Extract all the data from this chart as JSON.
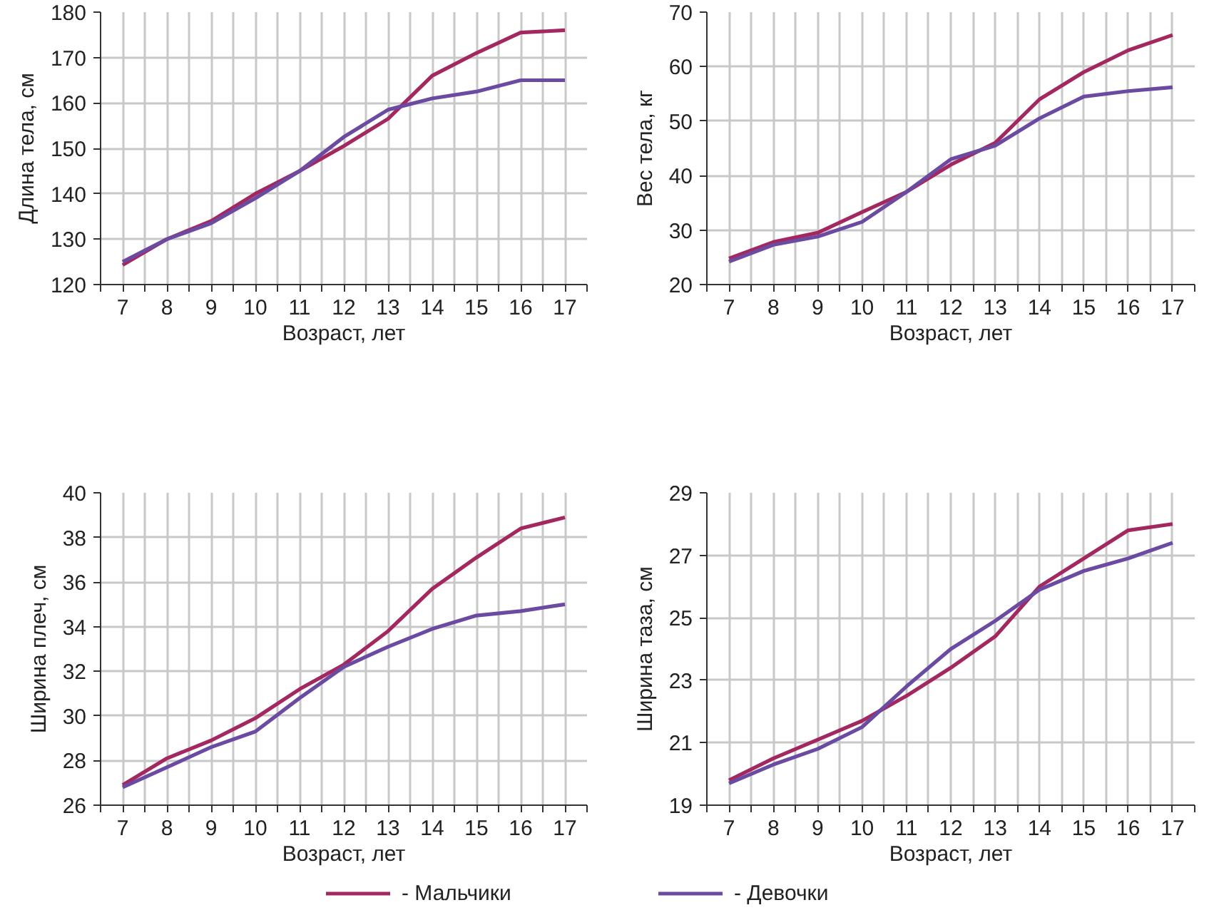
{
  "chart_data": [
    {
      "type": "line",
      "xlabel": "Возраст, лет",
      "ylabel": "Длина тела, см",
      "x": [
        7,
        8,
        9,
        10,
        11,
        12,
        13,
        14,
        15,
        16,
        17
      ],
      "xlim": [
        6.5,
        17.5
      ],
      "ylim": [
        120,
        180
      ],
      "xticks": [
        {
          "value": 6.5,
          "label": null
        },
        7,
        {
          "value": 7.5,
          "label": null
        },
        8,
        {
          "value": 8.5,
          "label": null
        },
        9,
        {
          "value": 9.5,
          "label": null
        },
        10,
        {
          "value": 10.5,
          "label": null
        },
        11,
        {
          "value": 11.5,
          "label": null
        },
        12,
        {
          "value": 12.5,
          "label": null
        },
        13,
        {
          "value": 13.5,
          "label": null
        },
        14,
        {
          "value": 14.5,
          "label": null
        },
        15,
        {
          "value": 15.5,
          "label": null
        },
        16,
        {
          "value": 16.5,
          "label": null
        },
        17,
        {
          "value": 17.5,
          "label": null
        }
      ],
      "yticks": [
        120,
        130,
        140,
        150,
        160,
        170,
        180
      ],
      "grid": true,
      "series": [
        {
          "color": "#a3285f",
          "values": [
            124.3,
            130,
            134,
            140,
            145,
            150.5,
            156.5,
            166,
            171,
            175.5,
            176
          ]
        },
        {
          "color": "#6b4aa2",
          "values": [
            125,
            130,
            133.5,
            139,
            145,
            152.5,
            158.5,
            161,
            162.5,
            165,
            165
          ]
        }
      ]
    },
    {
      "type": "line",
      "xlabel": "Возраст, лет",
      "ylabel": "Вес тела, кг",
      "x": [
        7,
        8,
        9,
        10,
        11,
        12,
        13,
        14,
        15,
        16,
        17
      ],
      "xlim": [
        6.5,
        17.5
      ],
      "ylim": [
        20,
        70
      ],
      "xticks": [
        {
          "value": 6.5,
          "label": null
        },
        7,
        {
          "value": 7.5,
          "label": null
        },
        8,
        {
          "value": 8.5,
          "label": null
        },
        9,
        {
          "value": 9.5,
          "label": null
        },
        10,
        {
          "value": 10.5,
          "label": null
        },
        11,
        {
          "value": 11.5,
          "label": null
        },
        12,
        {
          "value": 12.5,
          "label": null
        },
        13,
        {
          "value": 13.5,
          "label": null
        },
        14,
        {
          "value": 14.5,
          "label": null
        },
        15,
        {
          "value": 15.5,
          "label": null
        },
        16,
        {
          "value": 16.5,
          "label": null
        },
        17,
        {
          "value": 17.5,
          "label": null
        }
      ],
      "yticks": [
        20,
        30,
        40,
        50,
        60,
        70
      ],
      "grid": true,
      "series": [
        {
          "color": "#a3285f",
          "values": [
            24.8,
            27.8,
            29.5,
            33.3,
            37,
            42,
            46,
            54,
            59,
            63,
            65.8
          ]
        },
        {
          "color": "#6b4aa2",
          "values": [
            24.2,
            27.3,
            28.8,
            31.5,
            37,
            43,
            45.5,
            50.5,
            54.5,
            55.5,
            56.2
          ]
        }
      ]
    },
    {
      "type": "line",
      "xlabel": "Возраст, лет",
      "ylabel": "Ширина плеч, см",
      "x": [
        7,
        8,
        9,
        10,
        11,
        12,
        13,
        14,
        15,
        16,
        17
      ],
      "xlim": [
        6.5,
        17.5
      ],
      "ylim": [
        26,
        40
      ],
      "xticks": [
        {
          "value": 6.5,
          "label": null
        },
        7,
        {
          "value": 7.5,
          "label": null
        },
        8,
        {
          "value": 8.5,
          "label": null
        },
        9,
        {
          "value": 9.5,
          "label": null
        },
        10,
        {
          "value": 10.5,
          "label": null
        },
        11,
        {
          "value": 11.5,
          "label": null
        },
        12,
        {
          "value": 12.5,
          "label": null
        },
        13,
        {
          "value": 13.5,
          "label": null
        },
        14,
        {
          "value": 14.5,
          "label": null
        },
        15,
        {
          "value": 15.5,
          "label": null
        },
        16,
        {
          "value": 16.5,
          "label": null
        },
        17,
        {
          "value": 17.5,
          "label": null
        }
      ],
      "yticks": [
        26,
        28,
        30,
        32,
        34,
        36,
        38,
        40
      ],
      "grid": true,
      "series": [
        {
          "color": "#a3285f",
          "values": [
            26.9,
            28.1,
            28.9,
            29.9,
            31.2,
            32.3,
            33.8,
            35.7,
            37.1,
            38.4,
            38.9
          ]
        },
        {
          "color": "#6b4aa2",
          "values": [
            26.8,
            27.7,
            28.6,
            29.3,
            30.8,
            32.2,
            33.1,
            33.9,
            34.5,
            34.7,
            35.0
          ]
        }
      ]
    },
    {
      "type": "line",
      "xlabel": "Возраст, лет",
      "ylabel": "Ширина таза, см",
      "x": [
        7,
        8,
        9,
        10,
        11,
        12,
        13,
        14,
        15,
        16,
        17
      ],
      "xlim": [
        6.5,
        17.5
      ],
      "ylim": [
        19,
        29
      ],
      "xticks": [
        {
          "value": 6.5,
          "label": null
        },
        7,
        {
          "value": 7.5,
          "label": null
        },
        8,
        {
          "value": 8.5,
          "label": null
        },
        9,
        {
          "value": 9.5,
          "label": null
        },
        10,
        {
          "value": 10.5,
          "label": null
        },
        11,
        {
          "value": 11.5,
          "label": null
        },
        12,
        {
          "value": 12.5,
          "label": null
        },
        13,
        {
          "value": 13.5,
          "label": null
        },
        14,
        {
          "value": 14.5,
          "label": null
        },
        15,
        {
          "value": 15.5,
          "label": null
        },
        16,
        {
          "value": 16.5,
          "label": null
        },
        17,
        {
          "value": 17.5,
          "label": null
        }
      ],
      "yticks": [
        19,
        21,
        23,
        25,
        27,
        29
      ],
      "grid": true,
      "legend": "bottom",
      "series": [
        {
          "name": "- Мальчики",
          "color": "#a3285f",
          "values": [
            19.8,
            20.5,
            21.1,
            21.7,
            22.5,
            23.4,
            24.4,
            26.0,
            26.9,
            27.8,
            28.0
          ]
        },
        {
          "name": "- Девочки",
          "color": "#6b4aa2",
          "values": [
            19.7,
            20.3,
            20.8,
            21.5,
            22.8,
            24.0,
            24.9,
            25.9,
            26.5,
            26.9,
            27.4
          ]
        }
      ]
    }
  ]
}
